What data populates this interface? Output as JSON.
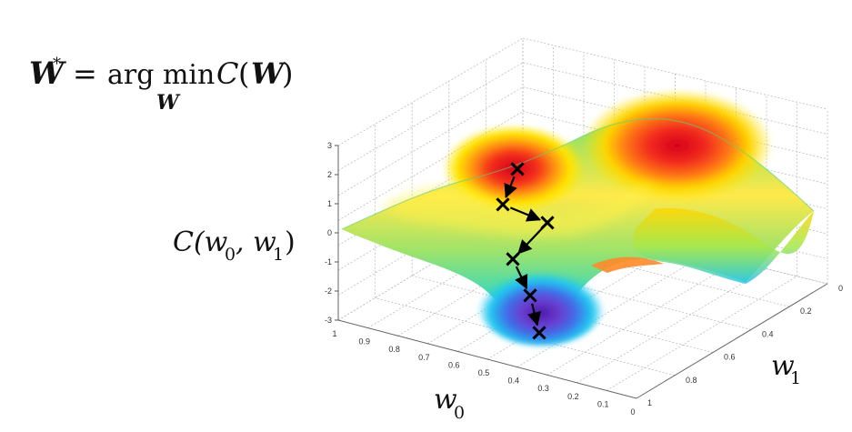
{
  "formula": {
    "lhs": "W",
    "lhs_sup": "*",
    "equals": "=",
    "op_main": "arg min",
    "op_sub": "W",
    "func": "C",
    "arg_open": "(",
    "arg": "W",
    "arg_close": ")"
  },
  "axis_labels": {
    "z_label": "C(w",
    "z_sub0": "0",
    "z_mid": ", w",
    "z_sub1": "1",
    "z_close": ")",
    "x_label": "w",
    "x_sub": "0",
    "y_label": "w",
    "y_sub": "1"
  },
  "z_ticks": [
    "3",
    "2",
    "1",
    "0",
    "-1",
    "-2",
    "-3"
  ],
  "x_ticks": [
    "1",
    "0.9",
    "0.8",
    "0.7",
    "0.6",
    "0.5",
    "0.4",
    "0.3",
    "0.2",
    "0.1",
    "0"
  ],
  "y_ticks": [
    "0",
    "0.2",
    "0.4",
    "0.6",
    "0.8",
    "1"
  ],
  "descent_path": {
    "marker_symbol": "×",
    "steps": 6
  },
  "colors": {
    "peak": "#e8101a",
    "high": "#ffe600",
    "mid": "#2fd47a",
    "low": "#20c8f0",
    "valley": "#5b2fb8",
    "path": "#000000"
  }
}
